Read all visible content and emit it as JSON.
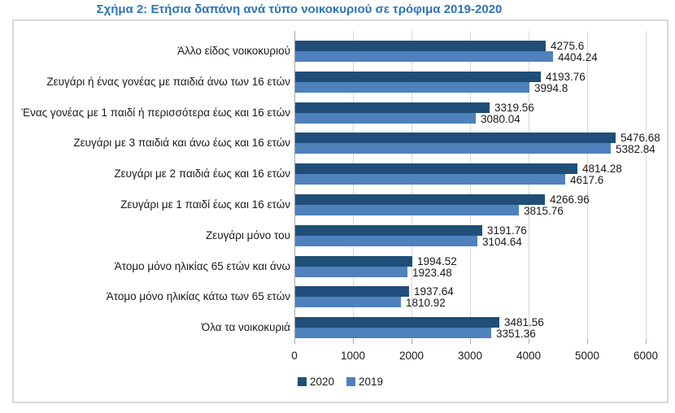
{
  "page": {
    "title": "Σχήμα 2: Ετήσια δαπάνη ανά τύπο νοικοκυριού σε τρόφιμα 2019-2020"
  },
  "chart_data": {
    "type": "bar",
    "orientation": "horizontal",
    "title": "Σχήμα 2: Ετήσια δαπάνη ανά τύπο νοικοκυριού σε τρόφιμα 2019-2020",
    "categories": [
      "Άλλο είδος  νοικοκυριού",
      "Ζευγάρι ή ένας γονέας με παιδιά άνω των 16 ετών",
      "Ένας γονέας με 1 παιδί ή περισσότερα έως και 16 ετών",
      "Ζευγάρι με 3 παιδιά και άνω έως και 16 ετών",
      "Ζευγάρι με 2 παιδιά έως και 16 ετών",
      "Ζευγάρι με 1 παιδί έως και 16 ετών",
      "Ζευγάρι μόνο του",
      "Άτομο μόνο ηλικίας 65 ετών και άνω",
      "Άτομο μόνο ηλικίας κάτω των 65 ετών",
      "Όλα τα νοικοκυριά"
    ],
    "series": [
      {
        "name": "2020",
        "color": "#1F4E79",
        "values": [
          4275.6,
          4193.76,
          3319.56,
          5476.68,
          4814.28,
          4266.96,
          3191.76,
          1994.52,
          1937.64,
          3481.56
        ]
      },
      {
        "name": "2019",
        "color": "#4F81BD",
        "values": [
          4404.24,
          3994.8,
          3080.04,
          5382.84,
          4617.6,
          3815.76,
          3104.64,
          1923.48,
          1810.92,
          3351.36
        ]
      }
    ],
    "value_labels": [
      "4275.6",
      "4404.24",
      "4193.76",
      "3994.8",
      "3319.56",
      "3080.04",
      "5476.68",
      "5382.84",
      "4814.28",
      "4617.6",
      "4266.96",
      "3815.76",
      "3191.76",
      "3104.64",
      "1994.52",
      "1923.48",
      "1937.64",
      "1810.92",
      "3481.56",
      "3351.36"
    ],
    "xlim": [
      0,
      6000
    ],
    "x_ticks": [
      0,
      1000,
      2000,
      3000,
      4000,
      5000,
      6000
    ],
    "grid": "vertical",
    "legend_position": "bottom",
    "legend": [
      "2020",
      "2019"
    ]
  },
  "colors": {
    "title_text": "#2E74B5",
    "bar_2020": "#1F4E79",
    "bar_2019": "#4F81BD",
    "gridline": "#D9D9D9",
    "axis_line": "#A6A6A6",
    "frame_border": "#D9D9D9",
    "label_text": "#1a1a1a",
    "background": "#FFFFFF"
  }
}
